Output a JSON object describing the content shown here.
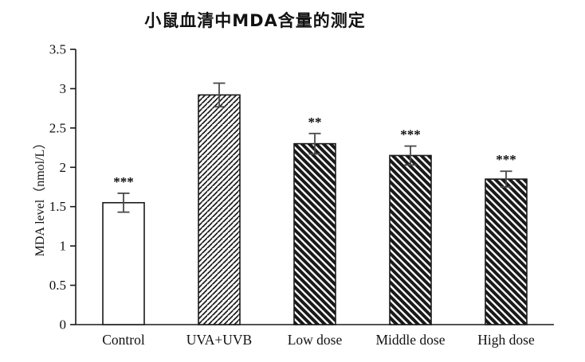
{
  "title": "小鼠血清中MDA含量的测定",
  "chart_data": {
    "type": "bar",
    "title": "小鼠血清中MDA含量的测定",
    "xlabel": "",
    "ylabel": "MDA level（nmol/L）",
    "categories": [
      "Control",
      "UVA+UVB",
      "Low dose",
      "Middle dose",
      "High dose"
    ],
    "values": [
      1.55,
      2.92,
      2.3,
      2.15,
      1.85
    ],
    "errors": [
      0.12,
      0.15,
      0.13,
      0.12,
      0.1
    ],
    "annotations": [
      "***",
      "",
      "**",
      "***",
      "***"
    ],
    "bar_fills": [
      "plain",
      "hatch-forward-thin",
      "hatch-back-thick",
      "hatch-back-thick",
      "hatch-back-thick"
    ],
    "ylim": [
      0,
      3.5
    ],
    "yticks": [
      "0",
      "0.5",
      "1",
      "1.5",
      "2",
      "2.5",
      "3",
      "3.5"
    ],
    "grid": false,
    "legend": "none"
  },
  "colors": {
    "bar_stroke": "#1a1a1a",
    "error_bar": "#4a4a4a",
    "axis": "#1a1a1a",
    "text": "#111111",
    "background": "#ffffff"
  }
}
